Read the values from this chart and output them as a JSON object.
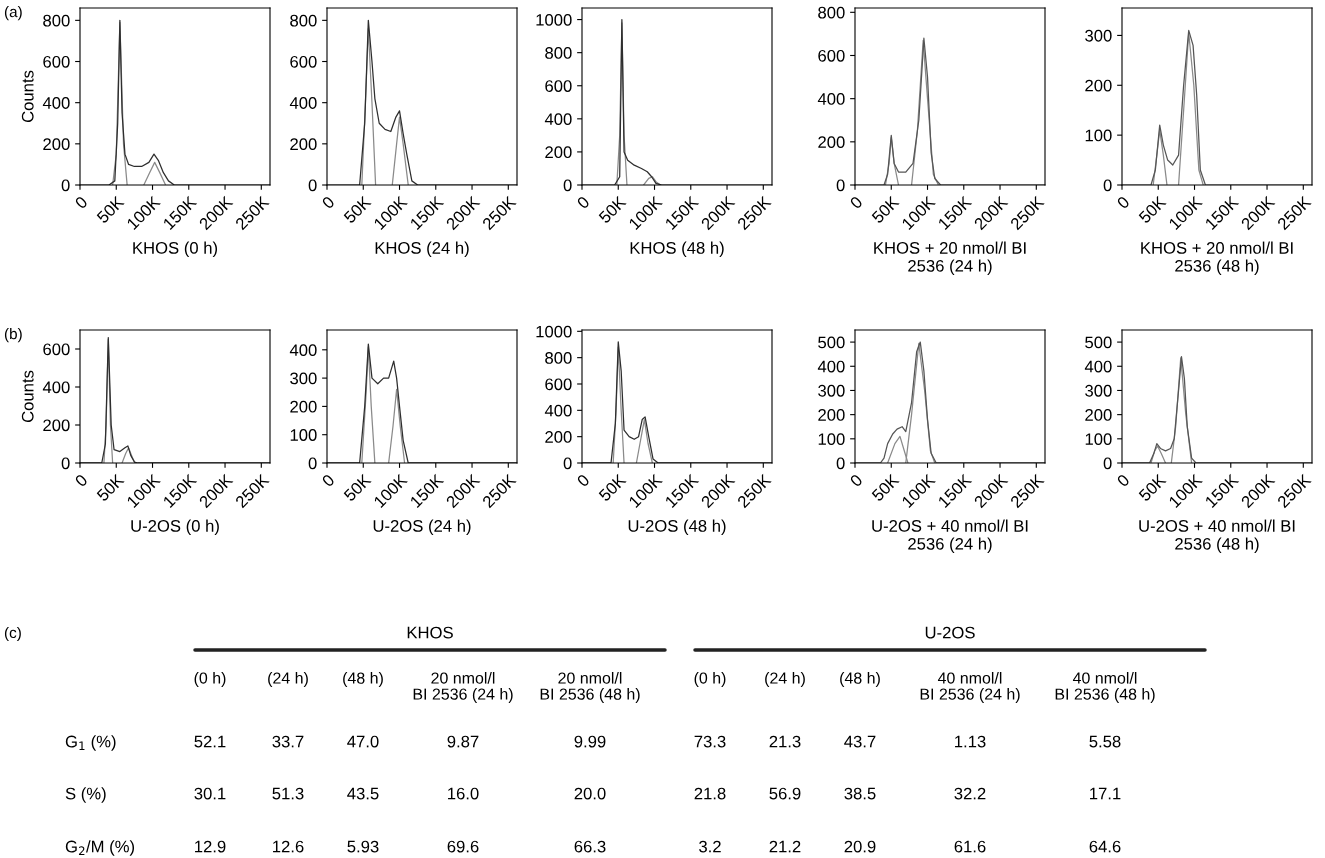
{
  "chart_data": [
    {
      "type": "line",
      "ylabel": "Counts",
      "xlabel": "KHOS (0 h)",
      "annotations": [
        "(a)"
      ],
      "xlim": [
        0,
        262000
      ],
      "ylim": [
        0,
        860
      ],
      "yticks": [
        0,
        200,
        400,
        600,
        800
      ],
      "xticks": [
        {
          "value": 0,
          "label": "0"
        },
        {
          "value": 50000,
          "label": "50K"
        },
        {
          "value": 100000,
          "label": "100K"
        },
        {
          "value": 150000,
          "label": "150K"
        },
        {
          "value": 200000,
          "label": "200K"
        },
        {
          "value": 250000,
          "label": "250K"
        }
      ],
      "series": [
        {
          "color": "#8a8a8a",
          "x": [
            45000,
            50000,
            55000,
            60000,
            65000
          ],
          "values": [
            0,
            150,
            790,
            200,
            0
          ]
        },
        {
          "color": "#8a8a8a",
          "x": [
            88000,
            96000,
            103000,
            110000,
            118000
          ],
          "values": [
            0,
            60,
            110,
            60,
            0
          ]
        },
        {
          "color": "#2e2e2e",
          "x": [
            0,
            40000,
            48000,
            52000,
            55000,
            58000,
            62000,
            67000,
            75000,
            85000,
            95000,
            102000,
            108000,
            115000,
            122000,
            130000,
            262000
          ],
          "values": [
            0,
            0,
            20,
            300,
            800,
            350,
            150,
            100,
            90,
            90,
            110,
            150,
            120,
            60,
            20,
            0,
            0
          ]
        }
      ]
    },
    {
      "type": "line",
      "xlabel": "KHOS (24 h)",
      "xlim": [
        0,
        262000
      ],
      "ylim": [
        0,
        860
      ],
      "yticks": [
        0,
        200,
        400,
        600,
        800
      ],
      "xticks": [
        {
          "value": 0,
          "label": "0"
        },
        {
          "value": 50000,
          "label": "50K"
        },
        {
          "value": 100000,
          "label": "100K"
        },
        {
          "value": 150000,
          "label": "150K"
        },
        {
          "value": 200000,
          "label": "200K"
        },
        {
          "value": 250000,
          "label": "250K"
        }
      ],
      "series": [
        {
          "color": "#8a8a8a",
          "x": [
            48000,
            53000,
            57000,
            62000,
            67000
          ],
          "values": [
            0,
            400,
            760,
            400,
            0
          ]
        },
        {
          "color": "#8a8a8a",
          "x": [
            90000,
            96000,
            100000,
            105000,
            112000
          ],
          "values": [
            0,
            200,
            330,
            200,
            0
          ]
        },
        {
          "color": "#2e2e2e",
          "x": [
            0,
            45000,
            52000,
            57000,
            62000,
            66000,
            72000,
            80000,
            88000,
            95000,
            100000,
            105000,
            110000,
            117000,
            125000,
            262000
          ],
          "values": [
            0,
            0,
            300,
            800,
            600,
            420,
            300,
            270,
            260,
            330,
            360,
            250,
            150,
            20,
            0,
            0
          ]
        }
      ]
    },
    {
      "type": "line",
      "xlabel": "KHOS (48 h)",
      "xlim": [
        0,
        262000
      ],
      "ylim": [
        0,
        1070
      ],
      "yticks": [
        0,
        200,
        400,
        600,
        800,
        1000
      ],
      "xticks": [
        {
          "value": 0,
          "label": "0"
        },
        {
          "value": 50000,
          "label": "50K"
        },
        {
          "value": 100000,
          "label": "100K"
        },
        {
          "value": 150000,
          "label": "150K"
        },
        {
          "value": 200000,
          "label": "200K"
        },
        {
          "value": 250000,
          "label": "250K"
        }
      ],
      "series": [
        {
          "color": "#8a8a8a",
          "x": [
            48000,
            52000,
            55000,
            58000,
            62000
          ],
          "values": [
            0,
            300,
            980,
            300,
            0
          ]
        },
        {
          "color": "#8a8a8a",
          "x": [
            85000,
            92000,
            97000,
            102000,
            108000
          ],
          "values": [
            0,
            40,
            50,
            20,
            0
          ]
        },
        {
          "color": "#2e2e2e",
          "x": [
            0,
            45000,
            52000,
            55000,
            58000,
            63000,
            72000,
            82000,
            90000,
            96000,
            102000,
            110000,
            262000
          ],
          "values": [
            0,
            0,
            50,
            1000,
            200,
            150,
            120,
            100,
            80,
            50,
            10,
            0,
            0
          ]
        }
      ]
    },
    {
      "type": "line",
      "xlabel": "KHOS + 20 nmol/l BI\n2536 (24 h)",
      "xlim": [
        0,
        262000
      ],
      "ylim": [
        0,
        820
      ],
      "yticks": [
        0,
        200,
        400,
        600,
        800
      ],
      "xticks": [
        {
          "value": 0,
          "label": "0"
        },
        {
          "value": 50000,
          "label": "50K"
        },
        {
          "value": 100000,
          "label": "100K"
        },
        {
          "value": 150000,
          "label": "150K"
        },
        {
          "value": 200000,
          "label": "200K"
        },
        {
          "value": 250000,
          "label": "250K"
        }
      ],
      "series": [
        {
          "color": "#8a8a8a",
          "x": [
            42000,
            47000,
            50000,
            54000,
            60000
          ],
          "values": [
            0,
            100,
            220,
            100,
            0
          ]
        },
        {
          "color": "#8a8a8a",
          "x": [
            78000,
            86000,
            94000,
            100000,
            108000,
            115000
          ],
          "values": [
            0,
            250,
            670,
            400,
            50,
            0
          ]
        },
        {
          "color": "#555555",
          "x": [
            0,
            40000,
            45000,
            50000,
            54000,
            60000,
            70000,
            80000,
            88000,
            95000,
            100000,
            105000,
            110000,
            118000,
            262000
          ],
          "values": [
            0,
            0,
            50,
            230,
            100,
            60,
            60,
            100,
            300,
            680,
            500,
            150,
            30,
            0,
            0
          ]
        }
      ]
    },
    {
      "type": "line",
      "xlabel": "KHOS + 20 nmol/l BI\n2536 (48 h)",
      "xlim": [
        0,
        262000
      ],
      "ylim": [
        0,
        355
      ],
      "yticks": [
        0,
        100,
        200,
        300
      ],
      "xticks": [
        {
          "value": 0,
          "label": "0"
        },
        {
          "value": 50000,
          "label": "50K"
        },
        {
          "value": 100000,
          "label": "100K"
        },
        {
          "value": 150000,
          "label": "150K"
        },
        {
          "value": 200000,
          "label": "200K"
        },
        {
          "value": 250000,
          "label": "250K"
        }
      ],
      "series": [
        {
          "color": "#8a8a8a",
          "x": [
            43000,
            48000,
            52000,
            57000,
            62000
          ],
          "values": [
            0,
            60,
            110,
            60,
            0
          ]
        },
        {
          "color": "#8a8a8a",
          "x": [
            78000,
            85000,
            92000,
            99000,
            106000,
            112000
          ],
          "values": [
            0,
            150,
            305,
            200,
            30,
            0
          ]
        },
        {
          "color": "#555555",
          "x": [
            0,
            40000,
            46000,
            52000,
            57000,
            63000,
            70000,
            78000,
            85000,
            92000,
            98000,
            103000,
            108000,
            115000,
            262000
          ],
          "values": [
            0,
            0,
            30,
            120,
            80,
            50,
            40,
            60,
            200,
            310,
            280,
            180,
            30,
            0,
            0
          ]
        }
      ]
    },
    {
      "type": "line",
      "ylabel": "Counts",
      "xlabel": "U-2OS (0 h)",
      "annotations": [
        "(b)"
      ],
      "xlim": [
        0,
        262000
      ],
      "ylim": [
        0,
        700
      ],
      "yticks": [
        0,
        200,
        400,
        600
      ],
      "xticks": [
        {
          "value": 0,
          "label": "0"
        },
        {
          "value": 50000,
          "label": "50K"
        },
        {
          "value": 100000,
          "label": "100K"
        },
        {
          "value": 150000,
          "label": "150K"
        },
        {
          "value": 200000,
          "label": "200K"
        },
        {
          "value": 250000,
          "label": "250K"
        }
      ],
      "series": [
        {
          "color": "#8a8a8a",
          "x": [
            33000,
            36000,
            39000,
            42000,
            45000
          ],
          "values": [
            0,
            200,
            650,
            200,
            0
          ]
        },
        {
          "color": "#8a8a8a",
          "x": [
            58000,
            63000,
            67000,
            72000,
            76000
          ],
          "values": [
            0,
            50,
            80,
            30,
            0
          ]
        },
        {
          "color": "#2e2e2e",
          "x": [
            0,
            30000,
            35000,
            39000,
            43000,
            47000,
            55000,
            62000,
            66000,
            70000,
            75000,
            80000,
            262000
          ],
          "values": [
            0,
            0,
            100,
            660,
            200,
            70,
            60,
            80,
            90,
            40,
            5,
            0,
            0
          ]
        }
      ]
    },
    {
      "type": "line",
      "xlabel": "U-2OS (24 h)",
      "xlim": [
        0,
        262000
      ],
      "ylim": [
        0,
        470
      ],
      "yticks": [
        0,
        100,
        200,
        300,
        400
      ],
      "xticks": [
        {
          "value": 0,
          "label": "0"
        },
        {
          "value": 50000,
          "label": "50K"
        },
        {
          "value": 100000,
          "label": "100K"
        },
        {
          "value": 150000,
          "label": "150K"
        },
        {
          "value": 200000,
          "label": "200K"
        },
        {
          "value": 250000,
          "label": "250K"
        }
      ],
      "series": [
        {
          "color": "#8a8a8a",
          "x": [
            48000,
            54000,
            57000,
            61000,
            66000
          ],
          "values": [
            0,
            250,
            410,
            200,
            0
          ]
        },
        {
          "color": "#8a8a8a",
          "x": [
            85000,
            91000,
            96000,
            101000,
            107000
          ],
          "values": [
            0,
            130,
            260,
            130,
            0
          ]
        },
        {
          "color": "#2e2e2e",
          "x": [
            0,
            45000,
            52000,
            57000,
            62000,
            70000,
            78000,
            85000,
            92000,
            96000,
            100000,
            105000,
            112000,
            262000
          ],
          "values": [
            0,
            0,
            200,
            420,
            300,
            280,
            300,
            300,
            360,
            300,
            200,
            80,
            0,
            0
          ]
        }
      ]
    },
    {
      "type": "line",
      "xlabel": "U-2OS (48 h)",
      "xlim": [
        0,
        262000
      ],
      "ylim": [
        0,
        1010
      ],
      "yticks": [
        0,
        200,
        400,
        600,
        800,
        1000
      ],
      "xticks": [
        {
          "value": 0,
          "label": "0"
        },
        {
          "value": 50000,
          "label": "50K"
        },
        {
          "value": 100000,
          "label": "100K"
        },
        {
          "value": 150000,
          "label": "150K"
        },
        {
          "value": 200000,
          "label": "200K"
        },
        {
          "value": 250000,
          "label": "250K"
        }
      ],
      "series": [
        {
          "color": "#8a8a8a",
          "x": [
            43000,
            47000,
            50000,
            54000,
            58000
          ],
          "values": [
            0,
            400,
            880,
            400,
            0
          ]
        },
        {
          "color": "#8a8a8a",
          "x": [
            75000,
            80000,
            86000,
            91000,
            97000
          ],
          "values": [
            0,
            150,
            330,
            150,
            0
          ]
        },
        {
          "color": "#2e2e2e",
          "x": [
            0,
            40000,
            46000,
            50000,
            54000,
            58000,
            65000,
            72000,
            78000,
            83000,
            87000,
            92000,
            98000,
            105000,
            262000
          ],
          "values": [
            0,
            0,
            300,
            920,
            700,
            250,
            200,
            180,
            200,
            330,
            350,
            200,
            30,
            0,
            0
          ]
        }
      ]
    },
    {
      "type": "line",
      "xlabel": "U-2OS + 40 nmol/l BI\n2536 (24 h)",
      "xlim": [
        0,
        262000
      ],
      "ylim": [
        0,
        550
      ],
      "yticks": [
        0,
        100,
        200,
        300,
        400,
        500
      ],
      "xticks": [
        {
          "value": 0,
          "label": "0"
        },
        {
          "value": 50000,
          "label": "50K"
        },
        {
          "value": 100000,
          "label": "100K"
        },
        {
          "value": 150000,
          "label": "150K"
        },
        {
          "value": 200000,
          "label": "200K"
        },
        {
          "value": 250000,
          "label": "250K"
        }
      ],
      "series": [
        {
          "color": "#8a8a8a",
          "x": [
            45000,
            55000,
            62000,
            67000,
            73000
          ],
          "values": [
            0,
            80,
            110,
            60,
            0
          ]
        },
        {
          "color": "#8a8a8a",
          "x": [
            70000,
            78000,
            88000,
            96000,
            104000,
            110000
          ],
          "values": [
            0,
            200,
            495,
            300,
            50,
            0
          ]
        },
        {
          "color": "#555555",
          "x": [
            0,
            35000,
            40000,
            45000,
            52000,
            58000,
            65000,
            70000,
            78000,
            85000,
            90000,
            95000,
            100000,
            105000,
            112000,
            262000
          ],
          "values": [
            0,
            0,
            20,
            80,
            120,
            140,
            150,
            130,
            250,
            460,
            500,
            380,
            180,
            40,
            0,
            0
          ]
        }
      ]
    },
    {
      "type": "line",
      "xlabel": "U-2OS + 40 nmol/l BI\n2536 (48 h)",
      "xlim": [
        0,
        262000
      ],
      "ylim": [
        0,
        550
      ],
      "yticks": [
        0,
        100,
        200,
        300,
        400,
        500
      ],
      "xticks": [
        {
          "value": 0,
          "label": "0"
        },
        {
          "value": 50000,
          "label": "50K"
        },
        {
          "value": 100000,
          "label": "100K"
        },
        {
          "value": 150000,
          "label": "150K"
        },
        {
          "value": 200000,
          "label": "200K"
        },
        {
          "value": 250000,
          "label": "250K"
        }
      ],
      "series": [
        {
          "color": "#8a8a8a",
          "x": [
            40000,
            45000,
            49000,
            54000,
            60000
          ],
          "values": [
            0,
            50,
            70,
            40,
            0
          ]
        },
        {
          "color": "#8a8a8a",
          "x": [
            68000,
            74000,
            81000,
            88000,
            96000
          ],
          "values": [
            0,
            150,
            435,
            200,
            0
          ]
        },
        {
          "color": "#555555",
          "x": [
            0,
            38000,
            44000,
            48000,
            53000,
            60000,
            67000,
            72000,
            78000,
            82000,
            86000,
            90000,
            96000,
            102000,
            262000
          ],
          "values": [
            0,
            0,
            40,
            80,
            60,
            50,
            60,
            100,
            300,
            440,
            350,
            150,
            20,
            0,
            0
          ]
        }
      ]
    },
    {
      "type": "other",
      "annotations": [
        "(c)",
        "KHOS",
        "U-2OS"
      ],
      "categories": [
        "(0 h)",
        "(24 h)",
        "(48 h)",
        "20 nmol/l\nBI 2536 (24 h)",
        "20 nmol/l\nBI 2536 (48 h)",
        "(0 h)",
        "(24 h)",
        "(48 h)",
        "40 nmol/l\nBI 2536 (24 h)",
        "40 nmol/l\nBI 2536 (48 h)"
      ],
      "y_categories": [
        "G$_{1}$ (%)",
        "S (%)",
        "G$_{2}$/M (%)"
      ],
      "cell_labels": [
        [
          "52.1",
          "33.7",
          "47.0",
          "9.87",
          "9.99",
          "73.3",
          "21.3",
          "43.7",
          "1.13",
          "5.58"
        ],
        [
          "30.1",
          "51.3",
          "43.5",
          "16.0",
          "20.0",
          "21.8",
          "56.9",
          "38.5",
          "32.2",
          "17.1"
        ],
        [
          "12.9",
          "12.6",
          "5.93",
          "69.6",
          "66.3",
          "3.2",
          "21.2",
          "20.9",
          "61.6",
          "64.6"
        ]
      ]
    }
  ]
}
